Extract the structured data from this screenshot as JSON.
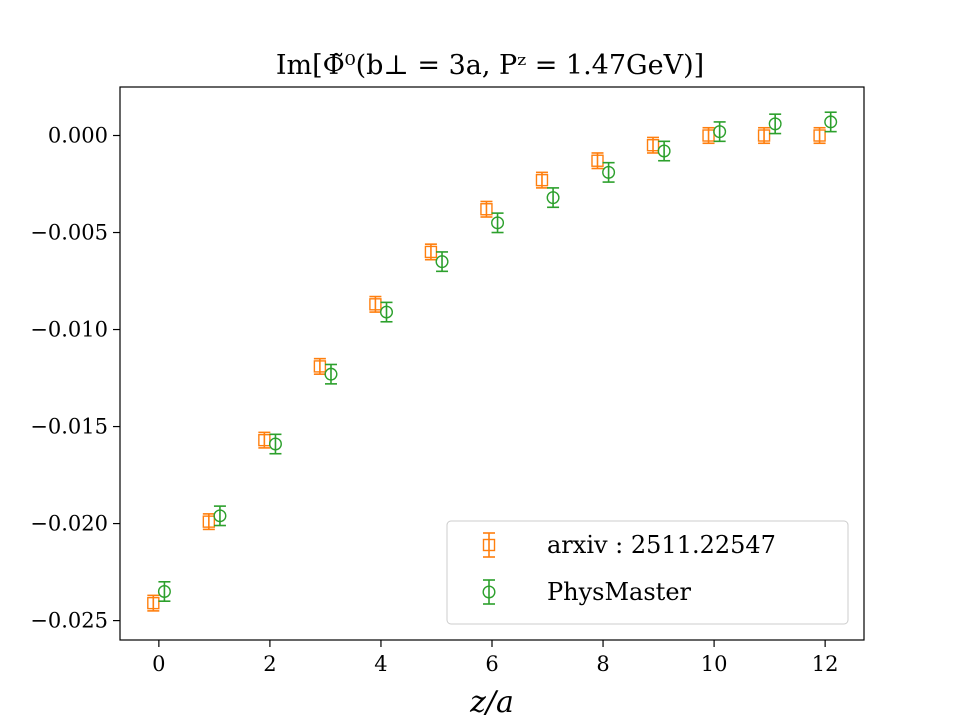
{
  "chart_data": {
    "type": "scatter",
    "title": "Im[Φ̃⁰(b⊥ = 3a, Pᶻ = 1.47GeV)]",
    "xlabel": "z/a",
    "ylabel": "",
    "xlim": [
      -0.7,
      12.7
    ],
    "ylim": [
      -0.026,
      0.0025
    ],
    "xticks": [
      0,
      2,
      4,
      6,
      8,
      10,
      12
    ],
    "xtick_labels": [
      "0",
      "2",
      "4",
      "6",
      "8",
      "10",
      "12"
    ],
    "yticks": [
      0.0,
      -0.005,
      -0.01,
      -0.015,
      -0.02,
      -0.025
    ],
    "ytick_labels": [
      "0.000",
      "−0.005",
      "−0.010",
      "−0.015",
      "−0.020",
      "−0.025"
    ],
    "legend_position": "lower-right",
    "series": [
      {
        "name": "arxiv : 2511.22547",
        "marker": "square",
        "color": "#ff7f0e",
        "x_offset": -0.1,
        "x": [
          0,
          1,
          2,
          3,
          4,
          5,
          6,
          7,
          8,
          9,
          10,
          11,
          12
        ],
        "y": [
          -0.0241,
          -0.0199,
          -0.0157,
          -0.0119,
          -0.0087,
          -0.006,
          -0.0038,
          -0.0023,
          -0.0013,
          -0.0005,
          0.0,
          0.0,
          0.0
        ],
        "yerr": [
          0.0004,
          0.0004,
          0.0004,
          0.0004,
          0.0004,
          0.0004,
          0.0004,
          0.0004,
          0.0004,
          0.0004,
          0.0004,
          0.0004,
          0.0004
        ]
      },
      {
        "name": "PhysMaster",
        "marker": "circle",
        "color": "#2ca02c",
        "x_offset": 0.1,
        "x": [
          0,
          1,
          2,
          3,
          4,
          5,
          6,
          7,
          8,
          9,
          10,
          11,
          12
        ],
        "y": [
          -0.0235,
          -0.0196,
          -0.0159,
          -0.0123,
          -0.0091,
          -0.0065,
          -0.0045,
          -0.0032,
          -0.0019,
          -0.0008,
          0.0002,
          0.0006,
          0.0007
        ],
        "yerr": [
          0.0005,
          0.0005,
          0.0005,
          0.0005,
          0.0005,
          0.0005,
          0.0005,
          0.0005,
          0.0005,
          0.0005,
          0.0005,
          0.0005,
          0.0005
        ]
      }
    ]
  }
}
